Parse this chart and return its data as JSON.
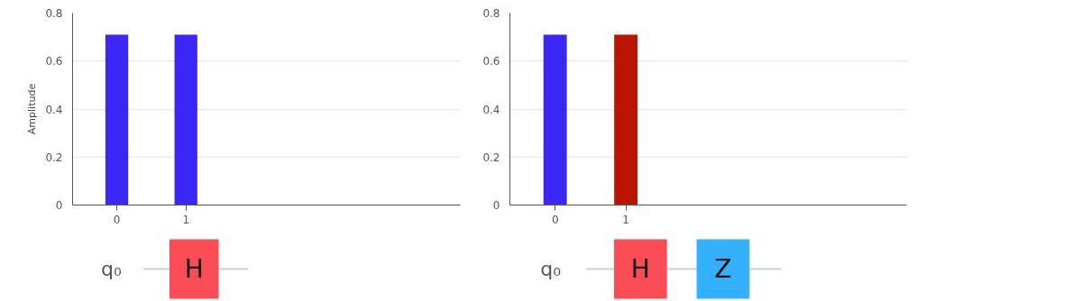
{
  "chart_data": [
    {
      "type": "bar",
      "ylabel": "Amplitude",
      "categories": [
        "0",
        "1"
      ],
      "colors": [
        "#3a26f5",
        "#3a26f5"
      ],
      "values": [
        0.71,
        0.71
      ],
      "ylim": [
        0,
        0.8
      ],
      "yticks": [
        0,
        0.2,
        0.4,
        0.6,
        0.8
      ],
      "grid": "y",
      "annotations": [
        "q₀",
        "H"
      ]
    },
    {
      "type": "bar",
      "categories": [
        "0",
        "1"
      ],
      "colors": [
        "#3a26f5",
        "#bb1400"
      ],
      "values": [
        0.71,
        0.71
      ],
      "ylim": [
        0,
        0.8
      ],
      "yticks": [
        0,
        0.2,
        0.4,
        0.6,
        0.8
      ],
      "grid": "y",
      "annotations": [
        "q₀",
        "H",
        "Z"
      ]
    }
  ]
}
